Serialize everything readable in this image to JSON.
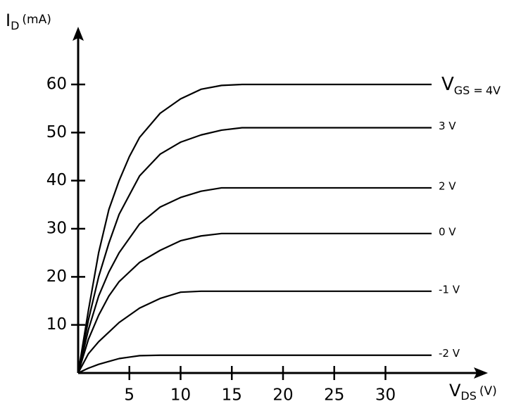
{
  "chart_data": {
    "type": "line",
    "y_label": {
      "main": "I",
      "sub": "D",
      "unit": "(mA)"
    },
    "x_label": {
      "main": "V",
      "sub": "DS",
      "unit": "(V)"
    },
    "series_label_prefix": {
      "main": "V",
      "sub": "GS ="
    },
    "x": [
      0,
      1,
      2,
      3,
      4,
      5,
      6,
      8,
      10,
      12,
      14,
      16,
      34.5
    ],
    "series": [
      {
        "name": "4V",
        "color": "#000000",
        "values": [
          0,
          13,
          25,
          34,
          40,
          45,
          49,
          54,
          57,
          59,
          59.8,
          60,
          60
        ]
      },
      {
        "name": "3 V",
        "color": "#000000",
        "values": [
          0,
          11,
          20,
          27,
          33,
          37,
          41,
          45.5,
          48,
          49.5,
          50.5,
          51,
          51
        ]
      },
      {
        "name": "2 V",
        "color": "#000000",
        "values": [
          0,
          9,
          16,
          21,
          25,
          28,
          31,
          34.5,
          36.5,
          37.8,
          38.5,
          38.5,
          38.5
        ]
      },
      {
        "name": "0 V",
        "color": "#000000",
        "values": [
          0,
          7,
          12,
          16,
          19,
          21,
          23,
          25.5,
          27.5,
          28.5,
          29,
          29,
          29
        ]
      },
      {
        "name": "-1 V",
        "color": "#000000",
        "values": [
          0,
          4,
          6.5,
          8.5,
          10.5,
          12,
          13.5,
          15.5,
          16.8,
          17,
          17,
          17,
          17
        ]
      },
      {
        "name": "-2 V",
        "color": "#000000",
        "values": [
          0,
          1,
          1.8,
          2.4,
          3,
          3.3,
          3.6,
          3.7,
          3.7,
          3.7,
          3.7,
          3.7,
          3.7
        ]
      }
    ],
    "xlim": [
      0,
      40
    ],
    "ylim": [
      0,
      72
    ],
    "xticks": [
      5,
      10,
      15,
      20,
      25,
      30
    ],
    "yticks": [
      10,
      20,
      30,
      40,
      50,
      60
    ],
    "grid": false
  }
}
